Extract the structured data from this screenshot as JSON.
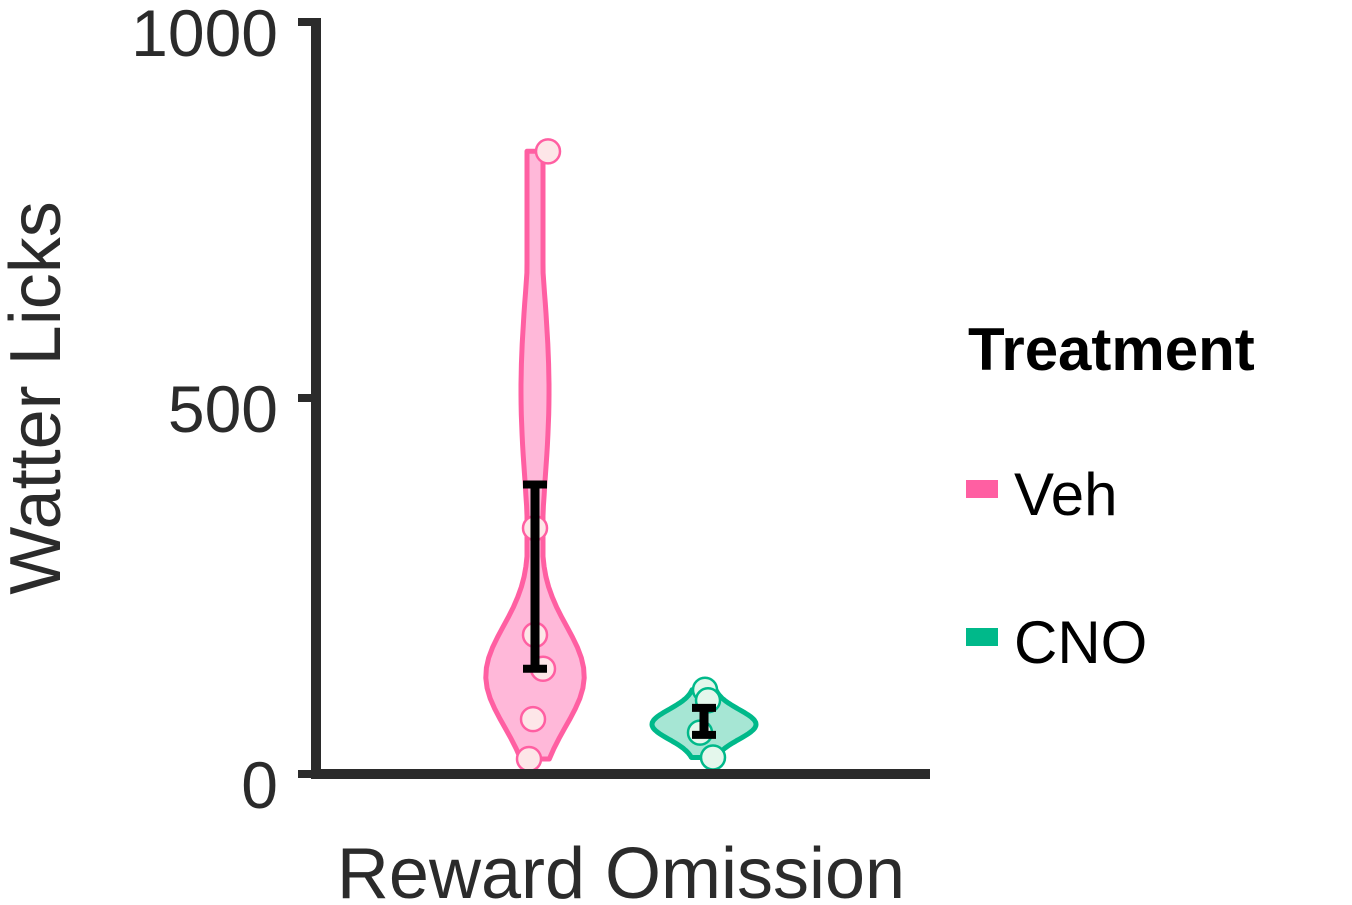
{
  "chart_data": {
    "type": "violin",
    "xlabel": "Reward Omission",
    "ylabel": "Watter Licks",
    "ylim": [
      0,
      1000
    ],
    "yticks": [
      "0",
      "500",
      "1000"
    ],
    "category": "Reward Omission",
    "legend": {
      "title": "Treatment",
      "position": "right",
      "items": [
        {
          "label": "Veh",
          "color": "#ff5fa2"
        },
        {
          "label": "CNO",
          "color": "#00b98a"
        }
      ]
    },
    "series": [
      {
        "name": "Veh",
        "color": "#ff5fa2",
        "fill": "#ffb8d9",
        "points_fill": "#fde6e8",
        "points": [
          828,
          327,
          185,
          140,
          73,
          20
        ],
        "error_bar": {
          "low": 140,
          "high": 385
        }
      },
      {
        "name": "CNO",
        "color": "#00b98a",
        "fill": "#a6e6d4",
        "points_fill": "#e4f7ec",
        "points": [
          112,
          98,
          55,
          22
        ],
        "error_bar": {
          "low": 52,
          "high": 88
        }
      }
    ]
  }
}
